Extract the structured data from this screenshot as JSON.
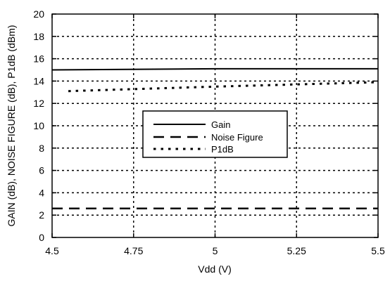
{
  "chart_data": {
    "type": "line",
    "title": "",
    "xlabel": "Vdd (V)",
    "ylabel": "GAIN (dB), NOISE FIGURE (dB), P1dB (dBm)",
    "xlim": [
      4.5,
      5.5
    ],
    "ylim": [
      0,
      20
    ],
    "xticks": [
      "4.5",
      "4.75",
      "5",
      "5.25",
      "5.5"
    ],
    "yticks": [
      "0",
      "2",
      "4",
      "6",
      "8",
      "10",
      "12",
      "14",
      "16",
      "18",
      "20"
    ],
    "grid": true,
    "legend_position": "center",
    "series": [
      {
        "name": "Gain",
        "style": "solid",
        "color": "#000000",
        "x": [
          4.5,
          5.0,
          5.5
        ],
        "y": [
          15.0,
          15.1,
          15.1
        ]
      },
      {
        "name": "Noise Figure",
        "style": "dashed",
        "color": "#000000",
        "x": [
          4.5,
          5.0,
          5.5
        ],
        "y": [
          2.6,
          2.6,
          2.6
        ]
      },
      {
        "name": "P1dB",
        "style": "dotted",
        "color": "#000000",
        "x": [
          4.55,
          5.0,
          5.5
        ],
        "y": [
          13.1,
          13.5,
          13.9
        ]
      }
    ]
  }
}
